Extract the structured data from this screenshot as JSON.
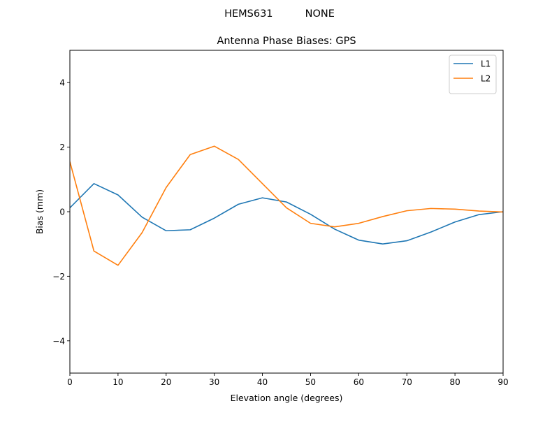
{
  "figure": {
    "suptitle": "HEMS631          NONE"
  },
  "chart_data": {
    "type": "line",
    "title": "Antenna Phase Biases: GPS",
    "xlabel": "Elevation angle (degrees)",
    "ylabel": "Bias (mm)",
    "xlim": [
      0,
      90
    ],
    "ylim": [
      -5,
      5
    ],
    "xticks": [
      0,
      10,
      20,
      30,
      40,
      50,
      60,
      70,
      80,
      90
    ],
    "yticks": [
      -4,
      -2,
      0,
      2,
      4
    ],
    "xtick_labels": [
      "0",
      "10",
      "20",
      "30",
      "40",
      "50",
      "60",
      "70",
      "80",
      "90"
    ],
    "ytick_labels": [
      "−4",
      "−2",
      "0",
      "2",
      "4"
    ],
    "grid": false,
    "legend_position": "upper right",
    "x": [
      0,
      5,
      10,
      15,
      20,
      25,
      30,
      35,
      40,
      45,
      50,
      55,
      60,
      65,
      70,
      75,
      80,
      85,
      90
    ],
    "series": [
      {
        "name": "L1",
        "color": "#1f77b4",
        "values": [
          0.12,
          0.87,
          0.52,
          -0.17,
          -0.59,
          -0.56,
          -0.2,
          0.23,
          0.43,
          0.3,
          -0.08,
          -0.54,
          -0.88,
          -1.0,
          -0.9,
          -0.63,
          -0.32,
          -0.09,
          0.0
        ]
      },
      {
        "name": "L2",
        "color": "#ff7f0e",
        "values": [
          1.55,
          -1.22,
          -1.66,
          -0.65,
          0.75,
          1.77,
          2.03,
          1.62,
          0.87,
          0.12,
          -0.36,
          -0.47,
          -0.36,
          -0.15,
          0.03,
          0.1,
          0.08,
          0.02,
          -0.01
        ]
      }
    ]
  }
}
